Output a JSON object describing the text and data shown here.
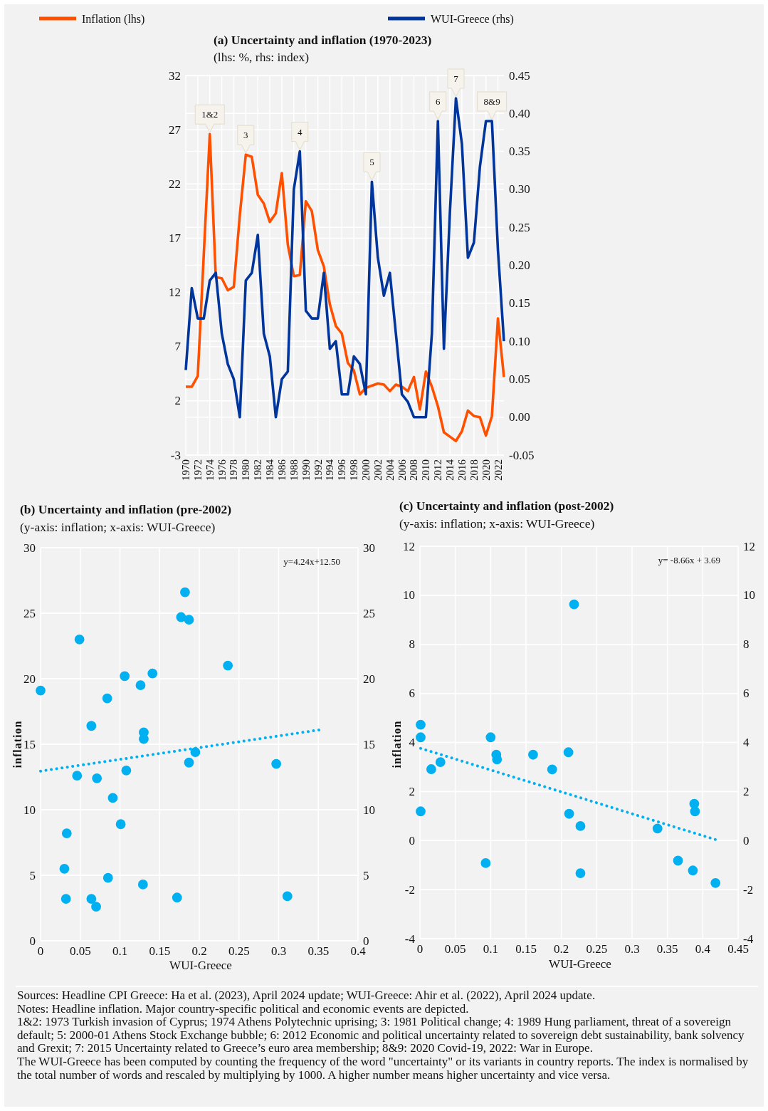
{
  "chart_data": [
    {
      "type": "line",
      "title": "(a) Uncertainty and inflation (1970-2023)",
      "subtitle": "(lhs: %, rhs: index)",
      "x": [
        1970,
        1971,
        1972,
        1973,
        1974,
        1975,
        1976,
        1977,
        1978,
        1979,
        1980,
        1981,
        1982,
        1983,
        1984,
        1985,
        1986,
        1987,
        1988,
        1989,
        1990,
        1991,
        1992,
        1993,
        1994,
        1995,
        1996,
        1997,
        1998,
        1999,
        2000,
        2001,
        2002,
        2003,
        2004,
        2005,
        2006,
        2007,
        2008,
        2009,
        2010,
        2011,
        2012,
        2013,
        2014,
        2015,
        2016,
        2017,
        2018,
        2019,
        2020,
        2021,
        2022,
        2023
      ],
      "xlim": [
        1970,
        2023
      ],
      "xticks": [
        1970,
        1972,
        1974,
        1976,
        1978,
        1980,
        1982,
        1984,
        1986,
        1988,
        1990,
        1992,
        1994,
        1996,
        1998,
        2000,
        2002,
        2004,
        2006,
        2008,
        2010,
        2012,
        2014,
        2016,
        2018,
        2020,
        2022
      ],
      "ylim": [
        -3,
        32
      ],
      "yticks": [
        -3,
        2,
        7,
        12,
        17,
        22,
        27,
        32
      ],
      "y2lim": [
        -0.05,
        0.45
      ],
      "y2ticks": [
        -0.05,
        {
          "value": 0,
          "label": "0.00"
        },
        0.05,
        {
          "value": 0.1,
          "label": "0.10"
        },
        0.15,
        {
          "value": 0.2,
          "label": "0.20"
        },
        0.25,
        {
          "value": 0.3,
          "label": "0.30"
        },
        0.35,
        {
          "value": 0.4,
          "label": "0.40"
        },
        0.45
      ],
      "grid": true,
      "legend": "top",
      "series": [
        {
          "name": "Inflation (lhs)",
          "color": "#ff5000",
          "values": [
            3.3,
            3.3,
            4.3,
            15.5,
            26.6,
            13.4,
            13.3,
            12.2,
            12.5,
            19.1,
            24.7,
            24.5,
            21.0,
            20.2,
            18.5,
            19.3,
            23.0,
            16.4,
            13.5,
            13.6,
            20.4,
            19.5,
            15.9,
            14.4,
            10.9,
            8.9,
            8.2,
            5.5,
            4.8,
            2.6,
            3.2,
            3.4,
            3.6,
            3.5,
            2.9,
            3.5,
            3.3,
            2.9,
            4.2,
            1.2,
            4.7,
            3.3,
            1.5,
            -0.9,
            -1.3,
            -1.7,
            -0.8,
            1.1,
            0.6,
            0.5,
            -1.2,
            0.6,
            9.6,
            4.2
          ]
        },
        {
          "name": "WUI-Greece (rhs)",
          "color": "#00359c",
          "axis": "y2",
          "values": [
            0.062,
            0.17,
            0.13,
            0.13,
            0.18,
            0.19,
            0.11,
            0.07,
            0.05,
            0.0,
            0.18,
            0.19,
            0.24,
            0.11,
            0.08,
            0.0,
            0.05,
            0.06,
            0.3,
            0.35,
            0.14,
            0.13,
            0.13,
            0.19,
            0.09,
            0.1,
            0.03,
            0.03,
            0.08,
            0.07,
            0.03,
            0.31,
            0.21,
            0.16,
            0.19,
            0.11,
            0.03,
            0.02,
            0.0,
            0.0,
            0.0,
            0.11,
            0.39,
            0.09,
            0.27,
            0.42,
            0.36,
            0.21,
            0.23,
            0.33,
            0.39,
            0.39,
            0.22,
            0.1
          ]
        }
      ],
      "annotations": [
        {
          "text": "1&2",
          "x": 1974,
          "y": 26.6
        },
        {
          "text": "3",
          "x": 1980,
          "y": 24.7
        },
        {
          "text": "4",
          "x": 1989,
          "y": 25.0
        },
        {
          "text": "5",
          "x": 2001,
          "y": 22.2
        },
        {
          "text": "6",
          "x": 2012,
          "y": 27.8
        },
        {
          "text": "7",
          "x": 2015,
          "y": 29.9
        },
        {
          "text": "8&9",
          "x": 2021,
          "y": 27.8
        },
        "Sources: Headline CPI Greece: Ha et al. (2023), April 2024 update; WUI-Greece: Ahir et al. (2022), April 2024 update.",
        "Notes: Headline inflation. Major country-specific political and economic events are depicted.",
        "1&2: 1973 Turkish invasion of Cyprus; 1974 Athens Polytechnic uprising; 3: 1981 Political change; 4: 1989 Hung parliament, threat of a sovereign default; 5: 2000-01 Athens Stock Exchange bubble; 6: 2012 Economic and political uncertainty related to sovereign debt sustainability, bank solvency and Grexit; 7: 2015 Uncertainty related to Greece’s euro area membership; 8&9: 2020 Covid-19, 2022: War in Europe.",
        "The WUI-Greece has been computed by counting the frequency of the word \"uncertainty\" or its variants in country reports. The index is normalised by the total number of words and rescaled by multiplying by 1000. A higher number means higher uncertainty and vice versa."
      ]
    },
    {
      "type": "scatter",
      "title": "(b) Uncertainty and inflation (pre-2002)",
      "subtitle": "(y-axis: inflation; x-axis: WUI-Greece)",
      "xlabel": "WUI-Greece",
      "ylabel": "inflation",
      "xlim": [
        0,
        0.4
      ],
      "xticks": [
        0,
        0.05,
        0.1,
        0.15,
        0.2,
        0.25,
        0.3,
        0.35,
        0.4
      ],
      "ylim": [
        0,
        30
      ],
      "yticks": [
        0,
        5,
        10,
        15,
        20,
        25,
        30
      ],
      "y2lim": [
        0,
        30
      ],
      "y2ticks": [
        0,
        5,
        10,
        15,
        20,
        25,
        30
      ],
      "grid": true,
      "series": [
        {
          "color": "#00b0f0",
          "marker": "circle",
          "x": [
            0.182,
            0.177,
            0.187,
            0.049,
            0.236,
            0.141,
            0.106,
            0.126,
            0,
            0.084,
            0.064,
            0.13,
            0.13,
            0.195,
            0.187,
            0.297,
            0.108,
            0.046,
            0.071,
            0.091,
            0.101,
            0.033,
            0.03,
            0.085,
            0.129,
            0.311,
            0.172,
            0.032,
            0.064,
            0.07
          ],
          "values": [
            26.6,
            24.7,
            24.5,
            23.0,
            21.0,
            20.4,
            20.2,
            19.5,
            19.1,
            18.5,
            16.4,
            15.9,
            15.4,
            14.4,
            13.6,
            13.5,
            13.0,
            12.6,
            12.4,
            10.9,
            8.9,
            8.2,
            5.5,
            4.8,
            4.3,
            3.4,
            3.3,
            3.2,
            3.2,
            2.6
          ]
        },
        {
          "type": "line",
          "line_style": "dotted",
          "color": "#00b0f0",
          "x": [
            0,
            0.352
          ],
          "values": [
            12.95,
            16.1
          ]
        }
      ],
      "annotations": [
        "y=4.24x+12.50"
      ]
    },
    {
      "type": "scatter",
      "title": "(c) Uncertainty and inflation (post-2002)",
      "subtitle": "(y-axis: inflation; x-axis: WUI-Greece)",
      "xlabel": "WUI-Greece",
      "ylabel": "inflation",
      "xlim": [
        0,
        0.45
      ],
      "xticks": [
        0,
        0.05,
        0.1,
        0.15,
        0.2,
        0.25,
        0.3,
        0.35,
        0.4,
        0.45
      ],
      "ylim": [
        -4,
        12
      ],
      "yticks": [
        -4,
        -2,
        0,
        2,
        4,
        6,
        8,
        10,
        12
      ],
      "y2lim": [
        -4,
        12
      ],
      "y2ticks": [
        -4,
        -2,
        0,
        2,
        4,
        6,
        8,
        10,
        12
      ],
      "grid": true,
      "series": [
        {
          "color": "#00b0f0",
          "marker": "circle",
          "x": [
            0.001,
            0.001,
            0.016,
            0.029,
            0.001,
            0.1,
            0.108,
            0.109,
            0.093,
            0.16,
            0.187,
            0.21,
            0.211,
            0.227,
            0.227,
            0.336,
            0.365,
            0.386,
            0.388,
            0.389,
            0.418,
            0.218
          ],
          "values": [
            4.72,
            4.21,
            2.91,
            3.2,
            1.19,
            4.21,
            3.5,
            3.31,
            -0.92,
            3.5,
            2.9,
            3.6,
            1.09,
            0.59,
            -1.33,
            0.49,
            -0.82,
            -1.22,
            1.5,
            1.19,
            -1.73,
            9.63
          ]
        },
        {
          "type": "line",
          "line_style": "dotted",
          "color": "#00b0f0",
          "x": [
            0.001,
            0.418
          ],
          "values": [
            3.76,
            0.04
          ]
        }
      ],
      "annotations": [
        "y= -8.66x + 3.69"
      ]
    }
  ]
}
